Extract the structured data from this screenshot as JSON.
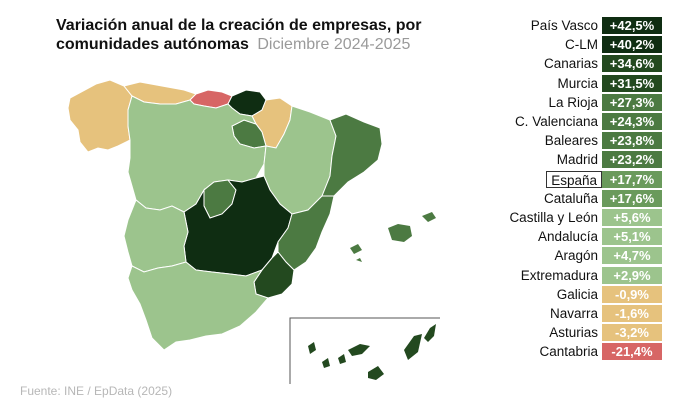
{
  "title": "Variación anual de la creación de empresas, por comunidades autónomas",
  "subtitle": "Diciembre 2024-2025",
  "source": "Fuente: INE / EpData (2025)",
  "colors": {
    "darkest": "#0f2d12",
    "dark": "#23491f",
    "mid_dark": "#4c7a42",
    "light_green": "#9cc48d",
    "pale_green": "#a9cf99",
    "sand": "#e6c27d",
    "red": "#d76665"
  },
  "ranking": [
    {
      "region": "País Vasco",
      "value": "+42,5%",
      "color": "#0f2d12"
    },
    {
      "region": "C-LM",
      "value": "+40,2%",
      "color": "#0f2d12"
    },
    {
      "region": "Canarias",
      "value": "+34,6%",
      "color": "#23491f"
    },
    {
      "region": "Murcia",
      "value": "+31,5%",
      "color": "#23491f"
    },
    {
      "region": "La Rioja",
      "value": "+27,3%",
      "color": "#4c7a42"
    },
    {
      "region": "C. Valenciana",
      "value": "+24,3%",
      "color": "#4c7a42"
    },
    {
      "region": "Baleares",
      "value": "+23,8%",
      "color": "#4c7a42"
    },
    {
      "region": "Madrid",
      "value": "+23,2%",
      "color": "#4c7a42"
    },
    {
      "region": "España",
      "value": "+17,7%",
      "color": "#6a9a5c",
      "highlight": true
    },
    {
      "region": "Cataluña",
      "value": "+17,6%",
      "color": "#6a9a5c"
    },
    {
      "region": "Castilla y León",
      "value": "+5,6%",
      "color": "#9cc48d"
    },
    {
      "region": "Andalucía",
      "value": "+5,1%",
      "color": "#9cc48d"
    },
    {
      "region": "Aragón",
      "value": "+4,7%",
      "color": "#9cc48d"
    },
    {
      "region": "Extremadura",
      "value": "+2,9%",
      "color": "#9cc48d"
    },
    {
      "region": "Galicia",
      "value": "-0,9%",
      "color": "#e6c27d"
    },
    {
      "region": "Navarra",
      "value": "-1,6%",
      "color": "#e6c27d"
    },
    {
      "region": "Asturias",
      "value": "-3,2%",
      "color": "#e6c27d"
    },
    {
      "region": "Cantabria",
      "value": "-21,4%",
      "color": "#d76665"
    }
  ]
}
